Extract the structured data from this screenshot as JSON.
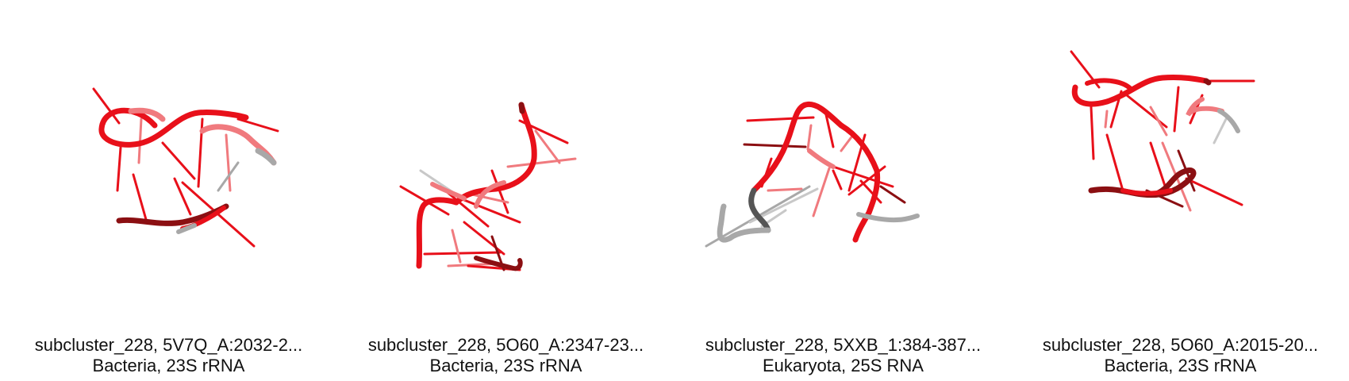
{
  "figure": {
    "colors": {
      "background": "#ffffff",
      "strand_red": "#e8101a",
      "strand_dark_red": "#8b0f12",
      "strand_light_red": "#f07a7e",
      "strand_grey": "#a8a8a8",
      "strand_dark_grey": "#555555",
      "caption_text": "#111111"
    },
    "panels": [
      {
        "title": "subcluster_228, 5V7Q_A:2032-2...",
        "subtitle": "Bacteria, 23S rRNA",
        "image": "rna-cartoon-structure"
      },
      {
        "title": "subcluster_228, 5O60_A:2347-23...",
        "subtitle": "Bacteria, 23S rRNA",
        "image": "rna-cartoon-structure"
      },
      {
        "title": "subcluster_228, 5XXB_1:384-387...",
        "subtitle": "Eukaryota, 25S RNA",
        "image": "rna-cartoon-structure"
      },
      {
        "title": "subcluster_228, 5O60_A:2015-20...",
        "subtitle": "Bacteria, 23S rRNA",
        "image": "rna-cartoon-structure"
      }
    ]
  }
}
